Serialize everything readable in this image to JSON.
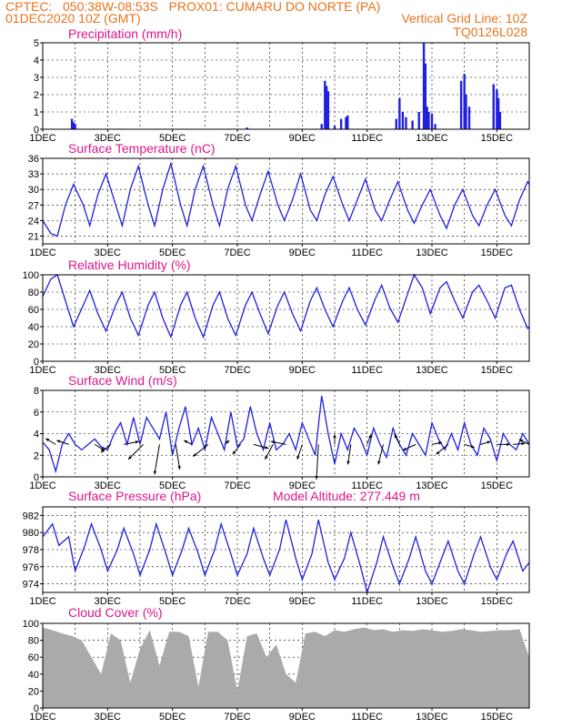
{
  "header": {
    "line1_left": "CPTEC:   050:38W-08:53S   PROX01: CUMARU DO NORTE (PA)",
    "line2_left": "01DEC2020 10Z (GMT)",
    "line2_right": "Vertical Grid Line: 10Z",
    "line3_right": "TQ0126L028",
    "model_altitude": "Model Altitude: 277.449 m"
  },
  "colors": {
    "header": "#e8731c",
    "panel_title": "#e0168c",
    "series": "#2020e0",
    "cloud": "#aaaaaa",
    "wind_arrow": "#000000"
  },
  "chart_data": [
    {
      "type": "bar",
      "title": "Precipitation (mm/h)",
      "x_ticks": [
        "1DEC",
        "3DEC",
        "5DEC",
        "7DEC",
        "9DEC",
        "11DEC",
        "13DEC",
        "15DEC"
      ],
      "y_ticks": [
        "0",
        "1",
        "2",
        "3",
        "4",
        "5"
      ],
      "ylim": [
        0,
        5
      ],
      "series_color": "#2020e0",
      "x_day": [
        1.9,
        1.95,
        2.0,
        7.3,
        9.6,
        9.7,
        9.75,
        9.8,
        10.0,
        10.2,
        10.35,
        10.4,
        11.9,
        12.0,
        12.1,
        12.2,
        12.4,
        12.6,
        12.75,
        12.8,
        12.85,
        12.9,
        13.0,
        13.1,
        13.9,
        14.0,
        14.05,
        14.15,
        14.9,
        15.0,
        15.05,
        15.1
      ],
      "values": [
        0.6,
        0.4,
        0.3,
        0.1,
        0.3,
        2.8,
        2.5,
        2.2,
        0.2,
        0.6,
        0.7,
        0.8,
        0.6,
        1.8,
        1.0,
        0.7,
        0.5,
        1.0,
        5.0,
        3.8,
        1.3,
        1.0,
        0.9,
        0.3,
        2.8,
        3.2,
        2.0,
        1.3,
        2.6,
        2.3,
        1.8,
        1.0
      ]
    },
    {
      "type": "line",
      "title": "Surface Temperature (nC)",
      "x_ticks": [
        "1DEC",
        "3DEC",
        "5DEC",
        "7DEC",
        "9DEC",
        "11DEC",
        "13DEC",
        "15DEC"
      ],
      "y_ticks": [
        "21",
        "24",
        "27",
        "30",
        "33",
        "36"
      ],
      "ylim": [
        19.5,
        36
      ],
      "series_color": "#2020e0",
      "x_day": [
        1.0,
        1.25,
        1.45,
        1.7,
        1.95,
        2.25,
        2.45,
        2.7,
        2.95,
        3.25,
        3.45,
        3.7,
        3.95,
        4.25,
        4.45,
        4.7,
        4.95,
        5.25,
        5.45,
        5.7,
        5.95,
        6.25,
        6.45,
        6.7,
        6.95,
        7.25,
        7.45,
        7.7,
        7.95,
        8.25,
        8.45,
        8.7,
        8.95,
        9.25,
        9.45,
        9.7,
        9.95,
        10.25,
        10.45,
        10.7,
        10.95,
        11.25,
        11.45,
        11.7,
        11.95,
        12.25,
        12.45,
        12.7,
        12.95,
        13.25,
        13.45,
        13.7,
        13.95,
        14.25,
        14.45,
        14.7,
        14.95,
        15.25,
        15.45,
        15.7,
        15.95,
        16.0
      ],
      "values": [
        24,
        21.5,
        21,
        27,
        31,
        27,
        23,
        29,
        33,
        27,
        23,
        30,
        34.5,
        27,
        23,
        30,
        35,
        27,
        23,
        30,
        34.5,
        27,
        23,
        30,
        34.5,
        27,
        24,
        29,
        33.5,
        27,
        24,
        28,
        33,
        26,
        24,
        29,
        32.5,
        27,
        24,
        28,
        32,
        26,
        24,
        28,
        31.5,
        26,
        23.5,
        27,
        30,
        25,
        22.5,
        27,
        30,
        25,
        23,
        27,
        30,
        25,
        23,
        28,
        31.5,
        31
      ]
    },
    {
      "type": "line",
      "title": "Relative Humidity (%)",
      "x_ticks": [
        "1DEC",
        "3DEC",
        "5DEC",
        "7DEC",
        "9DEC",
        "11DEC",
        "13DEC",
        "15DEC"
      ],
      "y_ticks": [
        "0",
        "20",
        "40",
        "60",
        "80",
        "100"
      ],
      "ylim": [
        0,
        100
      ],
      "series_color": "#2020e0",
      "x_day": [
        1.0,
        1.25,
        1.45,
        1.7,
        1.95,
        2.25,
        2.45,
        2.7,
        2.95,
        3.25,
        3.45,
        3.7,
        3.95,
        4.25,
        4.45,
        4.7,
        4.95,
        5.25,
        5.45,
        5.7,
        5.95,
        6.25,
        6.45,
        6.7,
        6.95,
        7.25,
        7.45,
        7.7,
        7.95,
        8.25,
        8.45,
        8.7,
        8.95,
        9.25,
        9.45,
        9.7,
        9.95,
        10.25,
        10.45,
        10.7,
        10.95,
        11.25,
        11.45,
        11.7,
        11.95,
        12.25,
        12.45,
        12.7,
        12.95,
        13.25,
        13.45,
        13.7,
        13.95,
        14.25,
        14.45,
        14.7,
        14.95,
        15.25,
        15.45,
        15.7,
        15.95,
        16.0
      ],
      "values": [
        75,
        95,
        100,
        70,
        40,
        65,
        82,
        55,
        35,
        65,
        80,
        50,
        30,
        65,
        80,
        50,
        28,
        65,
        80,
        50,
        28,
        65,
        80,
        50,
        30,
        65,
        80,
        55,
        32,
        65,
        80,
        55,
        35,
        70,
        85,
        60,
        40,
        70,
        85,
        60,
        42,
        72,
        88,
        62,
        45,
        78,
        100,
        85,
        55,
        85,
        92,
        70,
        50,
        80,
        88,
        70,
        50,
        85,
        88,
        60,
        38,
        40
      ]
    },
    {
      "type": "line",
      "title": "Surface Wind (m/s)",
      "x_ticks": [
        "1DEC",
        "3DEC",
        "5DEC",
        "7DEC",
        "9DEC",
        "11DEC",
        "13DEC",
        "15DEC"
      ],
      "y_ticks": [
        "0",
        "2",
        "4",
        "6",
        "8"
      ],
      "ylim": [
        0,
        8
      ],
      "series_color": "#2020e0",
      "x_day": [
        1.0,
        1.2,
        1.4,
        1.6,
        1.8,
        2.0,
        2.2,
        2.4,
        2.6,
        2.8,
        3.0,
        3.2,
        3.4,
        3.6,
        3.8,
        4.0,
        4.2,
        4.4,
        4.6,
        4.8,
        5.0,
        5.2,
        5.4,
        5.6,
        5.8,
        6.0,
        6.2,
        6.4,
        6.6,
        6.8,
        7.0,
        7.2,
        7.4,
        7.6,
        7.8,
        8.0,
        8.2,
        8.4,
        8.6,
        8.8,
        9.0,
        9.2,
        9.4,
        9.6,
        9.8,
        10.0,
        10.2,
        10.4,
        10.6,
        10.8,
        11.0,
        11.2,
        11.4,
        11.6,
        11.8,
        12.0,
        12.2,
        12.4,
        12.6,
        12.8,
        13.0,
        13.2,
        13.4,
        13.6,
        13.8,
        14.0,
        14.2,
        14.4,
        14.6,
        14.8,
        15.0,
        15.2,
        15.4,
        15.6,
        15.8,
        16.0
      ],
      "values": [
        3.2,
        2.5,
        0.5,
        3.0,
        4.0,
        3.0,
        2.5,
        3.0,
        3.5,
        2.8,
        2.5,
        4.0,
        5.0,
        3.0,
        5.5,
        3.0,
        5.5,
        4.5,
        3.5,
        6.0,
        2.0,
        4.5,
        6.5,
        3.0,
        4.5,
        2.5,
        5.5,
        4.0,
        2.5,
        6.0,
        2.8,
        3.5,
        6.5,
        4.0,
        2.5,
        5.0,
        2.5,
        3.0,
        4.0,
        2.5,
        5.0,
        3.5,
        2.0,
        7.5,
        4.0,
        1.2,
        4.0,
        2.5,
        4.5,
        3.5,
        2.0,
        4.5,
        3.0,
        1.8,
        4.5,
        3.0,
        2.0,
        4.0,
        3.0,
        2.0,
        5.0,
        3.5,
        2.5,
        4.0,
        2.5,
        5.0,
        3.0,
        2.0,
        4.5,
        3.5,
        1.5,
        4.0,
        3.0,
        2.5,
        4.0,
        3.0
      ],
      "arrow_day": [
        1.4,
        1.8,
        2.6,
        3.1,
        3.5,
        4.1,
        4.6,
        5.1,
        5.6,
        6.1,
        6.6,
        7.1,
        7.5,
        8.1,
        8.5,
        9.0,
        9.5,
        10.0,
        10.5,
        11.0,
        11.5,
        12.0,
        12.5,
        13.0,
        13.5,
        14.0,
        14.5,
        15.0,
        15.5,
        16.0
      ],
      "arrow_u": [
        -1.0,
        -1.2,
        1.0,
        -1.0,
        1.5,
        -1.5,
        -0.5,
        0.4,
        -0.8,
        -1.5,
        0.5,
        -0.8,
        1.5,
        -0.8,
        -1.5,
        -0.5,
        -0.2,
        0.0,
        -0.3,
        0.4,
        -0.5,
        -0.5,
        -1.3,
        1.0,
        -1.2,
        1.0,
        1.0,
        1.3,
        1.2,
        -1.0
      ],
      "arrow_v": [
        0.6,
        0.4,
        -0.6,
        -0.8,
        0.3,
        -1.5,
        -3.0,
        -2.5,
        0.4,
        -1.2,
        0.4,
        -1.0,
        -0.4,
        -1.5,
        0.3,
        -1.5,
        -3.5,
        1.0,
        -2.0,
        1.0,
        -2.0,
        1.0,
        -0.6,
        0.2,
        -1.0,
        -0.3,
        0.3,
        0.0,
        0.1,
        0.5
      ]
    },
    {
      "type": "line",
      "title": "Surface Pressure (hPa)",
      "x_ticks": [
        "1DEC",
        "3DEC",
        "5DEC",
        "7DEC",
        "9DEC",
        "11DEC",
        "13DEC",
        "15DEC"
      ],
      "y_ticks": [
        "974",
        "976",
        "978",
        "980",
        "982"
      ],
      "ylim": [
        973,
        983
      ],
      "series_color": "#2020e0",
      "x_day": [
        1.0,
        1.3,
        1.5,
        1.8,
        2.0,
        2.3,
        2.5,
        2.8,
        3.0,
        3.3,
        3.5,
        3.8,
        4.0,
        4.3,
        4.5,
        4.8,
        5.0,
        5.3,
        5.5,
        5.8,
        6.0,
        6.3,
        6.5,
        6.8,
        7.0,
        7.3,
        7.5,
        7.8,
        8.0,
        8.3,
        8.5,
        8.8,
        9.0,
        9.3,
        9.5,
        9.8,
        10.0,
        10.3,
        10.5,
        10.8,
        11.0,
        11.3,
        11.5,
        11.8,
        12.0,
        12.3,
        12.5,
        12.8,
        13.0,
        13.3,
        13.5,
        13.8,
        14.0,
        14.3,
        14.5,
        14.8,
        15.0,
        15.3,
        15.5,
        15.8,
        16.0
      ],
      "values": [
        979.5,
        981.0,
        978.5,
        979.5,
        975.5,
        978.5,
        981.0,
        978.0,
        975.5,
        978.0,
        980.5,
        977.5,
        975.0,
        978.0,
        981.0,
        977.5,
        975.0,
        978.0,
        980.5,
        977.5,
        975.0,
        978.0,
        981.0,
        977.5,
        975.0,
        977.5,
        980.5,
        977.0,
        975.0,
        978.0,
        981.5,
        977.0,
        974.5,
        977.5,
        981.5,
        976.5,
        974.5,
        977.0,
        980.0,
        976.0,
        973.0,
        976.5,
        979.5,
        976.0,
        974.0,
        977.0,
        979.5,
        975.5,
        974.0,
        977.0,
        979.0,
        975.5,
        974.0,
        977.5,
        979.5,
        976.0,
        974.5,
        977.5,
        979.0,
        975.5,
        976.5
      ]
    },
    {
      "type": "area",
      "title": "Cloud Cover (%)",
      "x_ticks": [
        "1DEC",
        "3DEC",
        "5DEC",
        "7DEC",
        "9DEC",
        "11DEC",
        "13DEC",
        "15DEC"
      ],
      "y_ticks": [
        "0",
        "20",
        "40",
        "60",
        "80",
        "100"
      ],
      "ylim": [
        0,
        100
      ],
      "series_color": "#aaaaaa",
      "x_day": [
        1.0,
        1.3,
        1.6,
        1.9,
        2.2,
        2.5,
        2.8,
        3.1,
        3.4,
        3.7,
        4.0,
        4.3,
        4.6,
        4.9,
        5.2,
        5.5,
        5.8,
        6.1,
        6.4,
        6.7,
        7.0,
        7.3,
        7.6,
        7.9,
        8.2,
        8.5,
        8.8,
        9.1,
        9.4,
        9.7,
        10.0,
        10.3,
        10.6,
        10.9,
        11.2,
        11.5,
        11.8,
        12.1,
        12.4,
        12.7,
        13.0,
        13.3,
        13.6,
        13.9,
        14.2,
        14.5,
        14.8,
        15.1,
        15.4,
        15.7,
        16.0
      ],
      "values": [
        95,
        92,
        88,
        85,
        80,
        60,
        40,
        88,
        80,
        30,
        70,
        92,
        50,
        90,
        90,
        85,
        25,
        90,
        90,
        80,
        20,
        85,
        88,
        60,
        75,
        40,
        30,
        88,
        90,
        85,
        92,
        90,
        93,
        95,
        92,
        93,
        90,
        92,
        91,
        93,
        92,
        90,
        91,
        93,
        92,
        90,
        91,
        92,
        92,
        93,
        60
      ]
    }
  ]
}
